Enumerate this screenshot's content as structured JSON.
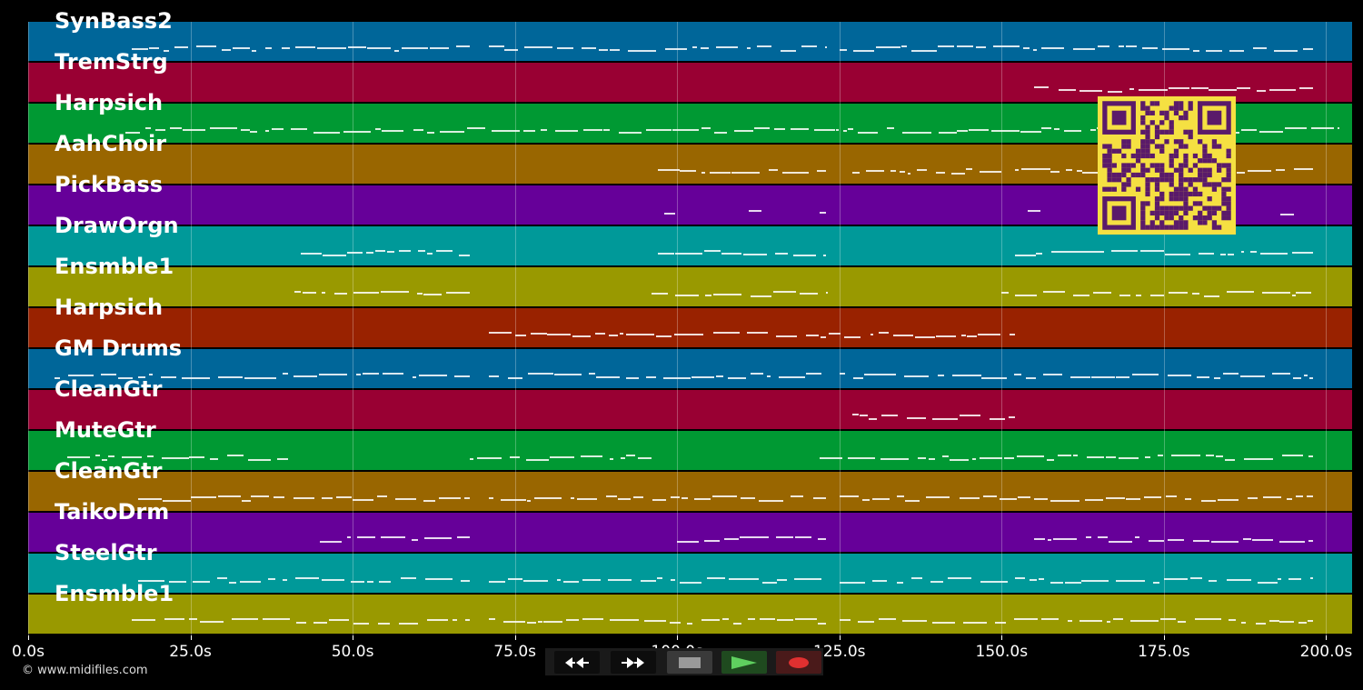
{
  "window": {
    "copyright": "© www.midifiles.com"
  },
  "timeline": {
    "tick_labels": [
      "0.0s",
      "25.0s",
      "50.0s",
      "75.0s",
      "100.0s",
      "125.0s",
      "150.0s",
      "175.0s",
      "200.0s"
    ],
    "tick_values": [
      0,
      25,
      50,
      75,
      100,
      125,
      150,
      175,
      200
    ],
    "x_range": [
      0,
      204
    ]
  },
  "tracks": [
    {
      "label": "SynBass2",
      "color": "#006699"
    },
    {
      "label": "TremStrg",
      "color": "#990033"
    },
    {
      "label": "Harpsich",
      "color": "#009933"
    },
    {
      "label": "AahChoir",
      "color": "#996600"
    },
    {
      "label": "PickBass",
      "color": "#660099"
    },
    {
      "label": "DrawOrgn",
      "color": "#009999"
    },
    {
      "label": "Ensmble1",
      "color": "#999900"
    },
    {
      "label": "Harpsich",
      "color": "#992200"
    },
    {
      "label": "GM Drums",
      "color": "#006699"
    },
    {
      "label": "CleanGtr",
      "color": "#990033"
    },
    {
      "label": "MuteGtr",
      "color": "#009933"
    },
    {
      "label": "CleanGtr",
      "color": "#996600"
    },
    {
      "label": "TaikoDrm",
      "color": "#660099"
    },
    {
      "label": "SteelGtr",
      "color": "#009999"
    },
    {
      "label": "Ensmble1",
      "color": "#999900"
    }
  ],
  "transport": {
    "rewind_icon": "rewind-icon",
    "fastforward_icon": "fast-forward-icon",
    "stop_icon": "stop-icon",
    "play_icon": "play-icon",
    "record_icon": "record-icon"
  },
  "colors": {
    "qr_background": "#f5e042",
    "qr_foreground": "#5a1a6a",
    "play_accent": "#5fcf5f",
    "record_accent": "#e03030"
  }
}
